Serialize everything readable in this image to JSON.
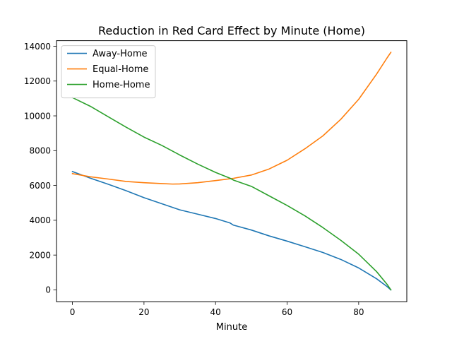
{
  "chart_data": {
    "type": "line",
    "title": "Reduction in Red Card Effect by Minute (Home)",
    "xlabel": "Minute",
    "ylabel": "",
    "xlim": [
      -4.45,
      93.45
    ],
    "ylim": [
      -680,
      14320
    ],
    "xticks": [
      0,
      20,
      40,
      60,
      80
    ],
    "yticks": [
      0,
      2000,
      4000,
      6000,
      8000,
      10000,
      12000,
      14000
    ],
    "legend_position": "upper-left",
    "grid": false,
    "series": [
      {
        "name": "Away-Home",
        "color": "#1f77b4",
        "points": [
          [
            0,
            6800
          ],
          [
            5,
            6420
          ],
          [
            10,
            6070
          ],
          [
            15,
            5700
          ],
          [
            20,
            5300
          ],
          [
            25,
            4950
          ],
          [
            30,
            4600
          ],
          [
            35,
            4350
          ],
          [
            40,
            4100
          ],
          [
            44,
            3850
          ],
          [
            45,
            3720
          ],
          [
            50,
            3440
          ],
          [
            55,
            3100
          ],
          [
            60,
            2800
          ],
          [
            65,
            2480
          ],
          [
            70,
            2150
          ],
          [
            75,
            1750
          ],
          [
            80,
            1260
          ],
          [
            85,
            640
          ],
          [
            88,
            180
          ],
          [
            89,
            0
          ]
        ]
      },
      {
        "name": "Equal-Home",
        "color": "#ff7f0e",
        "points": [
          [
            0,
            6680
          ],
          [
            5,
            6500
          ],
          [
            10,
            6370
          ],
          [
            15,
            6230
          ],
          [
            20,
            6160
          ],
          [
            25,
            6110
          ],
          [
            28,
            6080
          ],
          [
            30,
            6090
          ],
          [
            35,
            6160
          ],
          [
            40,
            6280
          ],
          [
            45,
            6410
          ],
          [
            50,
            6600
          ],
          [
            55,
            6950
          ],
          [
            60,
            7450
          ],
          [
            65,
            8110
          ],
          [
            70,
            8850
          ],
          [
            75,
            9800
          ],
          [
            80,
            10950
          ],
          [
            85,
            12400
          ],
          [
            88,
            13350
          ],
          [
            89,
            13650
          ]
        ]
      },
      {
        "name": "Home-Home",
        "color": "#2ca02c",
        "points": [
          [
            0,
            11050
          ],
          [
            5,
            10550
          ],
          [
            10,
            9950
          ],
          [
            15,
            9350
          ],
          [
            20,
            8780
          ],
          [
            25,
            8300
          ],
          [
            30,
            7750
          ],
          [
            35,
            7230
          ],
          [
            40,
            6750
          ],
          [
            44,
            6420
          ],
          [
            45,
            6310
          ],
          [
            50,
            5950
          ],
          [
            55,
            5400
          ],
          [
            60,
            4850
          ],
          [
            65,
            4250
          ],
          [
            70,
            3580
          ],
          [
            75,
            2850
          ],
          [
            80,
            2050
          ],
          [
            85,
            1050
          ],
          [
            88,
            300
          ],
          [
            89,
            0
          ]
        ]
      }
    ]
  }
}
